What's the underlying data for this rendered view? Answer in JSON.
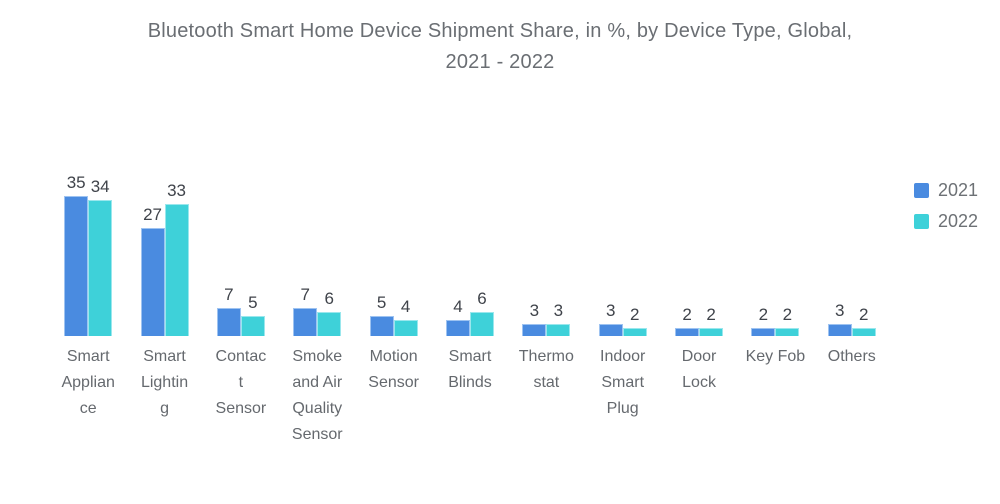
{
  "header": {
    "title_lines": [
      "Bluetooth Smart Home Device Shipment Share, in %, by Device Type, Global,",
      "2021 - 2022"
    ]
  },
  "colors": {
    "series_2021": "#4a8be0",
    "series_2022": "#3ed1d9",
    "title_text": "#6a6e73",
    "value_label_text": "#3f434a",
    "category_label_text": "#65696e",
    "legend_text": "#6d7175"
  },
  "chart_data": {
    "type": "bar",
    "title": "Bluetooth Smart Home Device Shipment Share, in %, by Device Type, Global, 2021 - 2022",
    "categories": [
      "Smart Appliance",
      "Smart Lighting",
      "Contact Sensor",
      "Smoke and Air Quality Sensor",
      "Motion Sensor",
      "Smart Blinds",
      "Thermostat",
      "Indoor Smart Plug",
      "Door Lock",
      "Key Fob",
      "Others"
    ],
    "category_label_lines": [
      [
        "Smart",
        "Applian",
        "ce"
      ],
      [
        "Smart",
        "Lightin",
        "g"
      ],
      [
        "Contac",
        "t",
        "Sensor"
      ],
      [
        "Smoke",
        "and Air",
        "Quality",
        "Sensor"
      ],
      [
        "Motion",
        "Sensor"
      ],
      [
        "Smart",
        "Blinds"
      ],
      [
        "Thermo",
        "stat"
      ],
      [
        "Indoor",
        "Smart",
        "Plug"
      ],
      [
        "Door",
        "Lock"
      ],
      [
        "Key Fob"
      ],
      [
        "Others"
      ]
    ],
    "series": [
      {
        "name": "2021",
        "color": "#4a8be0",
        "values": [
          35,
          27,
          7,
          7,
          5,
          4,
          3,
          3,
          2,
          2,
          3
        ]
      },
      {
        "name": "2022",
        "color": "#3ed1d9",
        "values": [
          34,
          33,
          5,
          6,
          4,
          6,
          3,
          2,
          2,
          2,
          2
        ]
      }
    ],
    "xlabel": "",
    "ylabel": "",
    "ylim": [
      0,
      35
    ],
    "grid": false,
    "value_labels": true,
    "legend_position": "right"
  }
}
